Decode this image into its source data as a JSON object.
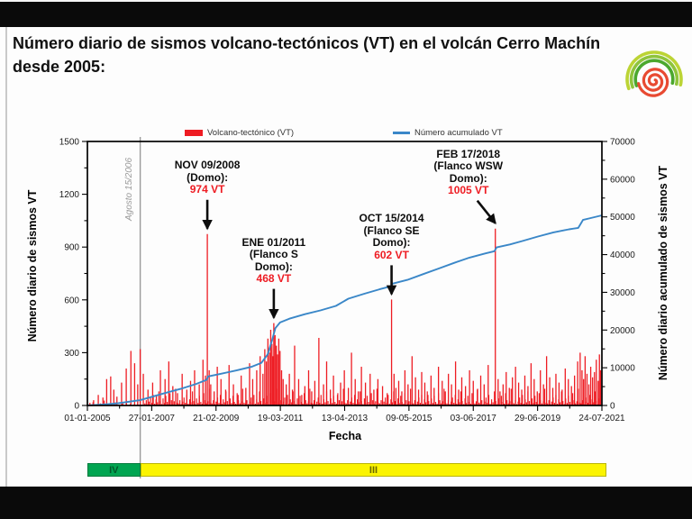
{
  "title": "Número diario de sismos volcano-tectónicos (VT) en el volcán Cerro Machín desde 2005:",
  "logo": {
    "name": "sgc-spiral-logo",
    "arc_colors": [
      "#bcd435",
      "#8fc43c",
      "#4ba82e"
    ],
    "spiral_color": "#e84a32"
  },
  "chart_data": {
    "type": "bar",
    "bar_series_label": "Volcano-tectónico (VT)",
    "line_series_label": "Número acumulado VT",
    "bar_color": "#ee1c23",
    "line_color": "#3a87c8",
    "xlabel": "Fecha",
    "ylabel_left": "Número diario de sismos VT",
    "ylabel_right": "Número diario acumulado de sismos VT",
    "x_tick_labels": [
      "01-01-2005",
      "27-01-2007",
      "21-02-2009",
      "19-03-2011",
      "13-04-2013",
      "09-05-2015",
      "03-06-2017",
      "29-06-2019",
      "24-07-2021"
    ],
    "x_range_years": [
      2005.0,
      2021.56
    ],
    "ylim_left": [
      0,
      1500
    ],
    "yticks_left": [
      0,
      300,
      600,
      900,
      1200,
      1500
    ],
    "ylim_right": [
      0,
      70000
    ],
    "yticks_right": [
      0,
      10000,
      20000,
      30000,
      40000,
      50000,
      60000,
      70000
    ],
    "grid": false,
    "legend_position": "top",
    "event_line": {
      "label": "Agosto 15/2006",
      "x_year": 2006.7,
      "color": "#9a9a9a"
    },
    "annotations": [
      {
        "id": "nov-09-2008",
        "lines": [
          "NOV 09/2008",
          "(Domo):"
        ],
        "value_label": "974 VT",
        "x_year": 2008.86,
        "value": 974,
        "slanted": false
      },
      {
        "id": "ene-01-2011",
        "lines": [
          "ENE 01/2011",
          "(Flanco S",
          "Domo):"
        ],
        "value_label": "468 VT",
        "x_year": 2011.0,
        "value": 468,
        "slanted": false
      },
      {
        "id": "oct-15-2014",
        "lines": [
          "OCT 15/2014",
          "(Flanco SE",
          "Domo):"
        ],
        "value_label": "602 VT",
        "x_year": 2014.79,
        "value": 602,
        "slanted": false
      },
      {
        "id": "feb-17-2018",
        "lines": [
          "FEB 17/2018",
          "(Flanco WSW",
          "Domo):"
        ],
        "value_label": "1005 VT",
        "x_year": 2018.13,
        "value": 1005,
        "slanted": true
      }
    ],
    "bars": [
      [
        2005.08,
        15
      ],
      [
        2005.2,
        30
      ],
      [
        2005.35,
        60
      ],
      [
        2005.5,
        45
      ],
      [
        2005.62,
        150
      ],
      [
        2005.75,
        165
      ],
      [
        2005.85,
        90
      ],
      [
        2005.95,
        50
      ],
      [
        2006.1,
        130
      ],
      [
        2006.25,
        210
      ],
      [
        2006.4,
        310
      ],
      [
        2006.52,
        240
      ],
      [
        2006.62,
        120
      ],
      [
        2006.7,
        320
      ],
      [
        2006.8,
        180
      ],
      [
        2006.95,
        90
      ],
      [
        2007.1,
        130
      ],
      [
        2007.22,
        60
      ],
      [
        2007.35,
        200
      ],
      [
        2007.5,
        150
      ],
      [
        2007.62,
        250
      ],
      [
        2007.75,
        110
      ],
      [
        2007.9,
        70
      ],
      [
        2008.05,
        180
      ],
      [
        2008.2,
        90
      ],
      [
        2008.32,
        140
      ],
      [
        2008.45,
        200
      ],
      [
        2008.6,
        120
      ],
      [
        2008.72,
        260
      ],
      [
        2008.8,
        170
      ],
      [
        2008.86,
        974
      ],
      [
        2008.92,
        200
      ],
      [
        2008.97,
        120
      ],
      [
        2009.08,
        80
      ],
      [
        2009.18,
        220
      ],
      [
        2009.3,
        150
      ],
      [
        2009.45,
        90
      ],
      [
        2009.56,
        230
      ],
      [
        2009.7,
        120
      ],
      [
        2009.85,
        60
      ],
      [
        2009.95,
        170
      ],
      [
        2010.1,
        100
      ],
      [
        2010.22,
        240
      ],
      [
        2010.32,
        150
      ],
      [
        2010.45,
        200
      ],
      [
        2010.56,
        280
      ],
      [
        2010.65,
        180
      ],
      [
        2010.71,
        320
      ],
      [
        2010.76,
        250
      ],
      [
        2010.81,
        380
      ],
      [
        2010.86,
        300
      ],
      [
        2010.9,
        430
      ],
      [
        2010.94,
        350
      ],
      [
        2010.97,
        280
      ],
      [
        2011.0,
        468
      ],
      [
        2011.04,
        400
      ],
      [
        2011.08,
        340
      ],
      [
        2011.12,
        290
      ],
      [
        2011.16,
        380
      ],
      [
        2011.2,
        310
      ],
      [
        2011.25,
        200
      ],
      [
        2011.3,
        150
      ],
      [
        2011.4,
        120
      ],
      [
        2011.5,
        180
      ],
      [
        2011.6,
        90
      ],
      [
        2011.67,
        340
      ],
      [
        2011.8,
        150
      ],
      [
        2011.9,
        60
      ],
      [
        2012.0,
        110
      ],
      [
        2012.12,
        200
      ],
      [
        2012.22,
        80
      ],
      [
        2012.32,
        140
      ],
      [
        2012.45,
        384
      ],
      [
        2012.6,
        120
      ],
      [
        2012.7,
        250
      ],
      [
        2012.82,
        90
      ],
      [
        2012.92,
        170
      ],
      [
        2013.05,
        60
      ],
      [
        2013.15,
        130
      ],
      [
        2013.27,
        200
      ],
      [
        2013.4,
        100
      ],
      [
        2013.5,
        300
      ],
      [
        2013.62,
        150
      ],
      [
        2013.72,
        80
      ],
      [
        2013.82,
        220
      ],
      [
        2013.95,
        130
      ],
      [
        2014.1,
        180
      ],
      [
        2014.22,
        90
      ],
      [
        2014.35,
        150
      ],
      [
        2014.5,
        110
      ],
      [
        2014.65,
        70
      ],
      [
        2014.79,
        602
      ],
      [
        2014.87,
        180
      ],
      [
        2014.93,
        100
      ],
      [
        2015.02,
        140
      ],
      [
        2015.12,
        80
      ],
      [
        2015.22,
        200
      ],
      [
        2015.32,
        120
      ],
      [
        2015.45,
        280
      ],
      [
        2015.56,
        160
      ],
      [
        2015.66,
        90
      ],
      [
        2015.76,
        190
      ],
      [
        2015.86,
        130
      ],
      [
        2015.96,
        60
      ],
      [
        2016.06,
        170
      ],
      [
        2016.16,
        100
      ],
      [
        2016.3,
        220
      ],
      [
        2016.42,
        140
      ],
      [
        2016.52,
        80
      ],
      [
        2016.62,
        180
      ],
      [
        2016.72,
        120
      ],
      [
        2016.85,
        250
      ],
      [
        2016.95,
        90
      ],
      [
        2017.05,
        160
      ],
      [
        2017.17,
        110
      ],
      [
        2017.3,
        200
      ],
      [
        2017.42,
        140
      ],
      [
        2017.55,
        90
      ],
      [
        2017.66,
        170
      ],
      [
        2017.77,
        120
      ],
      [
        2017.9,
        230
      ],
      [
        2018.13,
        1005
      ],
      [
        2018.22,
        150
      ],
      [
        2018.28,
        80
      ],
      [
        2018.38,
        120
      ],
      [
        2018.48,
        190
      ],
      [
        2018.58,
        100
      ],
      [
        2018.68,
        160
      ],
      [
        2018.78,
        220
      ],
      [
        2018.88,
        130
      ],
      [
        2018.98,
        90
      ],
      [
        2019.08,
        170
      ],
      [
        2019.18,
        110
      ],
      [
        2019.28,
        240
      ],
      [
        2019.38,
        150
      ],
      [
        2019.48,
        80
      ],
      [
        2019.58,
        200
      ],
      [
        2019.68,
        120
      ],
      [
        2019.78,
        280
      ],
      [
        2019.88,
        160
      ],
      [
        2019.98,
        100
      ],
      [
        2020.08,
        180
      ],
      [
        2020.18,
        130
      ],
      [
        2020.28,
        90
      ],
      [
        2020.38,
        210
      ],
      [
        2020.48,
        150
      ],
      [
        2020.58,
        110
      ],
      [
        2020.68,
        170
      ],
      [
        2020.78,
        250
      ],
      [
        2020.86,
        300
      ],
      [
        2020.92,
        200
      ],
      [
        2020.97,
        150
      ],
      [
        2021.02,
        280
      ],
      [
        2021.08,
        180
      ],
      [
        2021.14,
        120
      ],
      [
        2021.2,
        220
      ],
      [
        2021.26,
        160
      ],
      [
        2021.32,
        190
      ],
      [
        2021.38,
        260
      ],
      [
        2021.44,
        140
      ],
      [
        2021.48,
        290
      ],
      [
        2021.52,
        200
      ]
    ],
    "noise": {
      "dense": {
        "from": 2006.85,
        "to": 2021.52,
        "step": 0.045,
        "pattern": [
          12,
          30,
          8,
          22,
          45,
          15,
          60,
          10,
          35,
          18,
          80,
          25,
          8,
          40,
          14,
          55,
          20,
          10,
          70,
          30,
          12,
          24,
          95,
          16
        ]
      },
      "sparse": {
        "from": 2005.06,
        "to": 2006.85,
        "step": 0.12,
        "pattern": [
          6,
          18,
          4,
          12,
          28,
          8
        ]
      }
    },
    "cumulative": [
      [
        2005.0,
        0
      ],
      [
        2005.5,
        250
      ],
      [
        2006.0,
        600
      ],
      [
        2006.7,
        1400
      ],
      [
        2007.07,
        2300
      ],
      [
        2007.5,
        3300
      ],
      [
        2008.0,
        4400
      ],
      [
        2008.5,
        5700
      ],
      [
        2008.84,
        6800
      ],
      [
        2008.88,
        7700
      ],
      [
        2009.3,
        8400
      ],
      [
        2009.8,
        9300
      ],
      [
        2010.3,
        10300
      ],
      [
        2010.6,
        11300
      ],
      [
        2010.8,
        13500
      ],
      [
        2010.95,
        17500
      ],
      [
        2011.05,
        20500
      ],
      [
        2011.2,
        22000
      ],
      [
        2011.5,
        23000
      ],
      [
        2012.0,
        24200
      ],
      [
        2012.5,
        25200
      ],
      [
        2013.0,
        26400
      ],
      [
        2013.4,
        28300
      ],
      [
        2013.9,
        29600
      ],
      [
        2014.4,
        30800
      ],
      [
        2014.77,
        31600
      ],
      [
        2014.82,
        32300
      ],
      [
        2015.3,
        33300
      ],
      [
        2015.8,
        34800
      ],
      [
        2016.3,
        36300
      ],
      [
        2016.8,
        37800
      ],
      [
        2017.3,
        39200
      ],
      [
        2017.8,
        40300
      ],
      [
        2018.1,
        40900
      ],
      [
        2018.17,
        41900
      ],
      [
        2018.6,
        42700
      ],
      [
        2019.0,
        43600
      ],
      [
        2019.5,
        44800
      ],
      [
        2020.0,
        45900
      ],
      [
        2020.5,
        46700
      ],
      [
        2020.8,
        47100
      ],
      [
        2020.95,
        49200
      ],
      [
        2021.2,
        49700
      ],
      [
        2021.56,
        50400
      ]
    ],
    "activity_levels": [
      {
        "label": "IV",
        "color": "#00a551",
        "border": "#00793c",
        "text_color": "#00572a",
        "from": 2005.0,
        "to": 2006.7
      },
      {
        "label": "III",
        "color": "#fbf400",
        "border": "#b9b400",
        "text_color": "#6b6800",
        "from": 2006.7,
        "to": 2021.6
      }
    ]
  }
}
